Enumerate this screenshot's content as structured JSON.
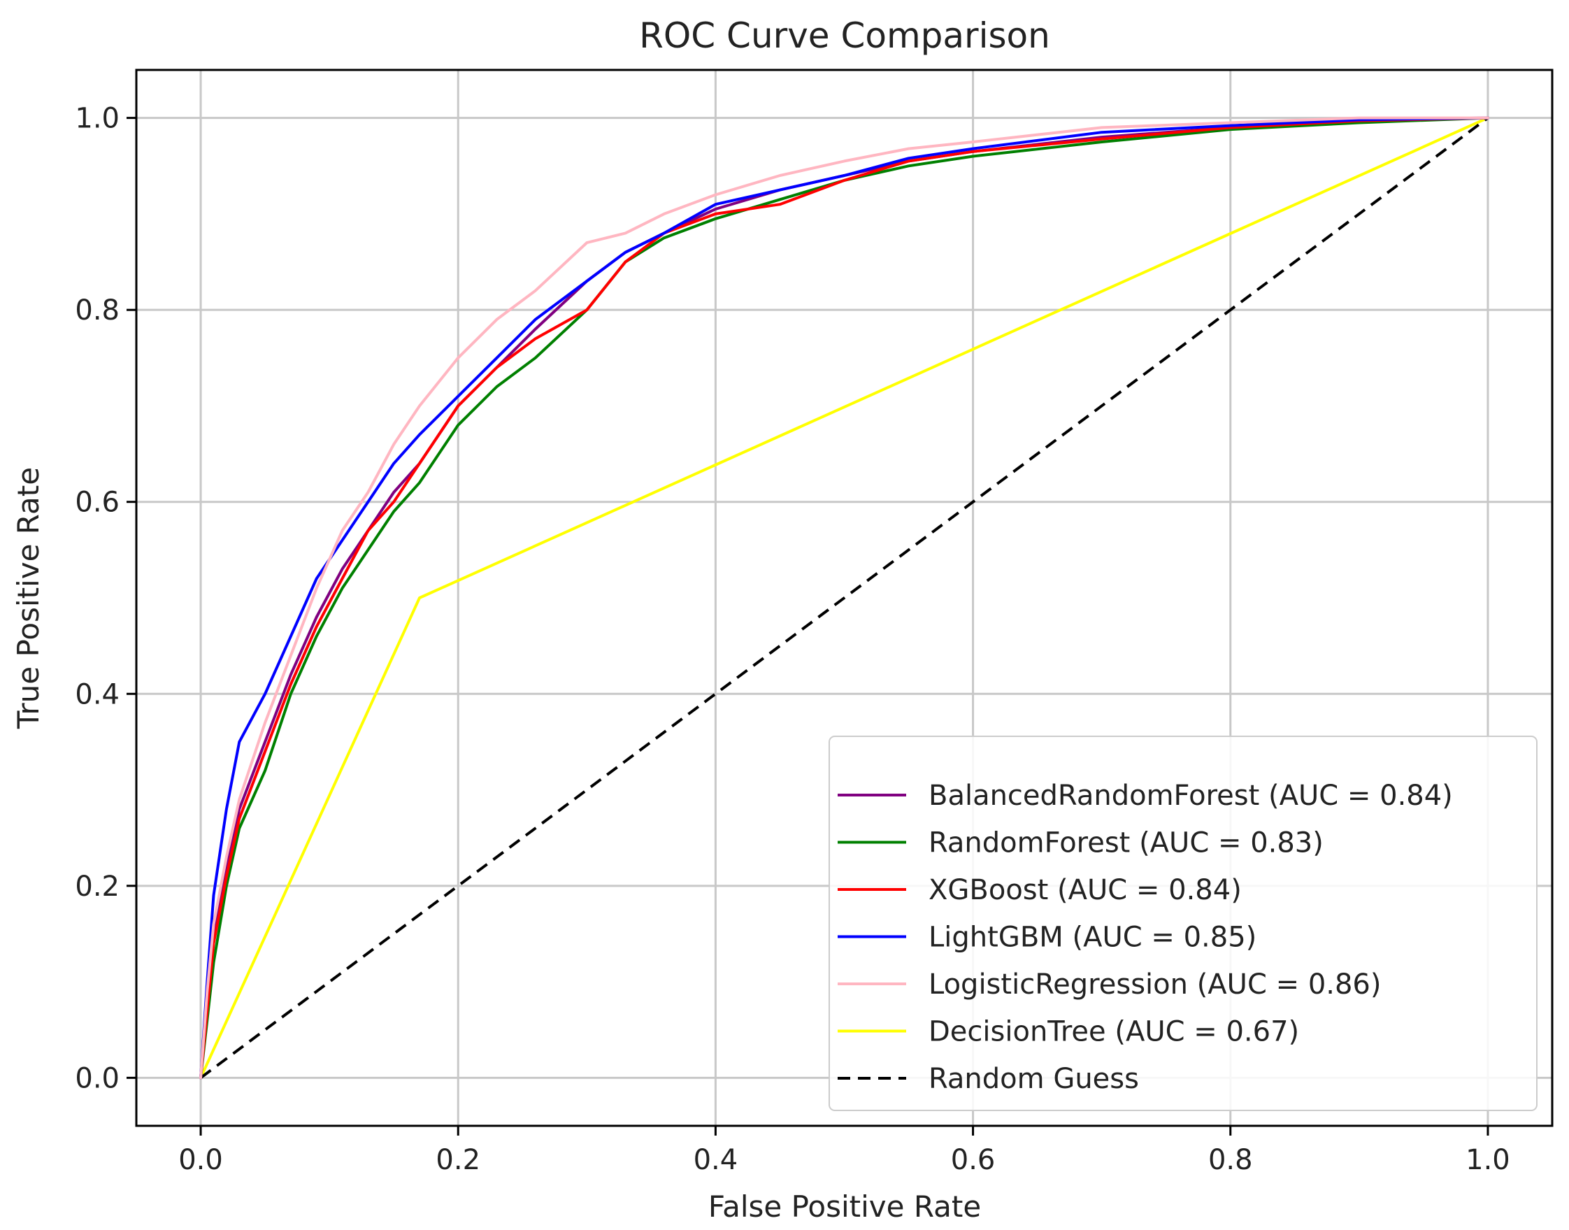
{
  "chart_data": {
    "type": "line",
    "title": "ROC Curve Comparison",
    "xlabel": "False Positive Rate",
    "ylabel": "True Positive Rate",
    "xlim": [
      -0.05,
      1.05
    ],
    "ylim": [
      -0.05,
      1.05
    ],
    "xticks": [
      0.0,
      0.2,
      0.4,
      0.6,
      0.8,
      1.0
    ],
    "yticks": [
      0.0,
      0.2,
      0.4,
      0.6,
      0.8,
      1.0
    ],
    "xtick_labels": [
      "0.0",
      "0.2",
      "0.4",
      "0.6",
      "0.8",
      "1.0"
    ],
    "ytick_labels": [
      "0.0",
      "0.2",
      "0.4",
      "0.6",
      "0.8",
      "1.0"
    ],
    "grid": true,
    "legend_position": "bottom-right",
    "series": [
      {
        "name": "BalancedRandomForest (AUC = 0.84)",
        "color": "#800080",
        "dash": false,
        "x": [
          0,
          0.005,
          0.01,
          0.02,
          0.03,
          0.05,
          0.07,
          0.09,
          0.11,
          0.13,
          0.15,
          0.17,
          0.2,
          0.23,
          0.26,
          0.3,
          0.33,
          0.36,
          0.4,
          0.45,
          0.5,
          0.55,
          0.6,
          0.7,
          0.8,
          0.9,
          1.0
        ],
        "y": [
          0,
          0.08,
          0.15,
          0.22,
          0.28,
          0.35,
          0.42,
          0.48,
          0.53,
          0.57,
          0.61,
          0.64,
          0.7,
          0.74,
          0.78,
          0.83,
          0.86,
          0.88,
          0.905,
          0.925,
          0.94,
          0.955,
          0.965,
          0.98,
          0.99,
          0.998,
          1.0
        ]
      },
      {
        "name": "RandomForest (AUC = 0.83)",
        "color": "#008000",
        "dash": false,
        "x": [
          0,
          0.005,
          0.01,
          0.02,
          0.03,
          0.05,
          0.07,
          0.09,
          0.11,
          0.13,
          0.15,
          0.17,
          0.2,
          0.23,
          0.26,
          0.3,
          0.33,
          0.36,
          0.4,
          0.45,
          0.5,
          0.55,
          0.6,
          0.7,
          0.8,
          0.9,
          1.0
        ],
        "y": [
          0,
          0.06,
          0.12,
          0.2,
          0.26,
          0.32,
          0.4,
          0.46,
          0.51,
          0.55,
          0.59,
          0.62,
          0.68,
          0.72,
          0.75,
          0.8,
          0.85,
          0.875,
          0.895,
          0.915,
          0.935,
          0.95,
          0.96,
          0.975,
          0.988,
          0.995,
          1.0
        ]
      },
      {
        "name": "XGBoost (AUC = 0.84)",
        "color": "#ff0000",
        "dash": false,
        "x": [
          0,
          0.005,
          0.01,
          0.02,
          0.03,
          0.05,
          0.07,
          0.09,
          0.11,
          0.13,
          0.15,
          0.17,
          0.2,
          0.23,
          0.26,
          0.3,
          0.33,
          0.36,
          0.4,
          0.45,
          0.5,
          0.55,
          0.6,
          0.7,
          0.8,
          0.9,
          1.0
        ],
        "y": [
          0,
          0.07,
          0.14,
          0.21,
          0.27,
          0.34,
          0.41,
          0.47,
          0.52,
          0.57,
          0.6,
          0.64,
          0.7,
          0.74,
          0.77,
          0.8,
          0.85,
          0.88,
          0.9,
          0.91,
          0.935,
          0.955,
          0.965,
          0.978,
          0.99,
          0.997,
          1.0
        ]
      },
      {
        "name": "LightGBM (AUC = 0.85)",
        "color": "#0000ff",
        "dash": false,
        "x": [
          0,
          0.005,
          0.01,
          0.02,
          0.03,
          0.05,
          0.07,
          0.09,
          0.11,
          0.13,
          0.15,
          0.17,
          0.2,
          0.23,
          0.26,
          0.3,
          0.33,
          0.36,
          0.4,
          0.45,
          0.5,
          0.55,
          0.6,
          0.7,
          0.8,
          0.9,
          1.0
        ],
        "y": [
          0,
          0.1,
          0.19,
          0.28,
          0.35,
          0.4,
          0.46,
          0.52,
          0.56,
          0.6,
          0.64,
          0.67,
          0.71,
          0.75,
          0.79,
          0.83,
          0.86,
          0.88,
          0.91,
          0.925,
          0.94,
          0.958,
          0.968,
          0.985,
          0.992,
          0.998,
          1.0
        ]
      },
      {
        "name": "LogisticRegression (AUC = 0.86)",
        "color": "#ffb6c1",
        "dash": false,
        "x": [
          0,
          0.005,
          0.01,
          0.02,
          0.03,
          0.05,
          0.07,
          0.09,
          0.11,
          0.13,
          0.15,
          0.17,
          0.2,
          0.23,
          0.26,
          0.3,
          0.33,
          0.36,
          0.4,
          0.45,
          0.5,
          0.55,
          0.6,
          0.7,
          0.8,
          0.9,
          1.0
        ],
        "y": [
          0,
          0.09,
          0.16,
          0.23,
          0.29,
          0.37,
          0.44,
          0.51,
          0.57,
          0.61,
          0.66,
          0.7,
          0.75,
          0.79,
          0.82,
          0.87,
          0.88,
          0.9,
          0.92,
          0.94,
          0.955,
          0.968,
          0.975,
          0.99,
          0.995,
          1.0,
          1.0
        ]
      },
      {
        "name": "DecisionTree (AUC = 0.67)",
        "color": "#ffff00",
        "dash": false,
        "x": [
          0,
          0.17,
          1.0
        ],
        "y": [
          0,
          0.5,
          1.0
        ]
      },
      {
        "name": "Random Guess",
        "color": "#000000",
        "dash": true,
        "x": [
          0,
          1.0
        ],
        "y": [
          0,
          1.0
        ]
      }
    ]
  }
}
